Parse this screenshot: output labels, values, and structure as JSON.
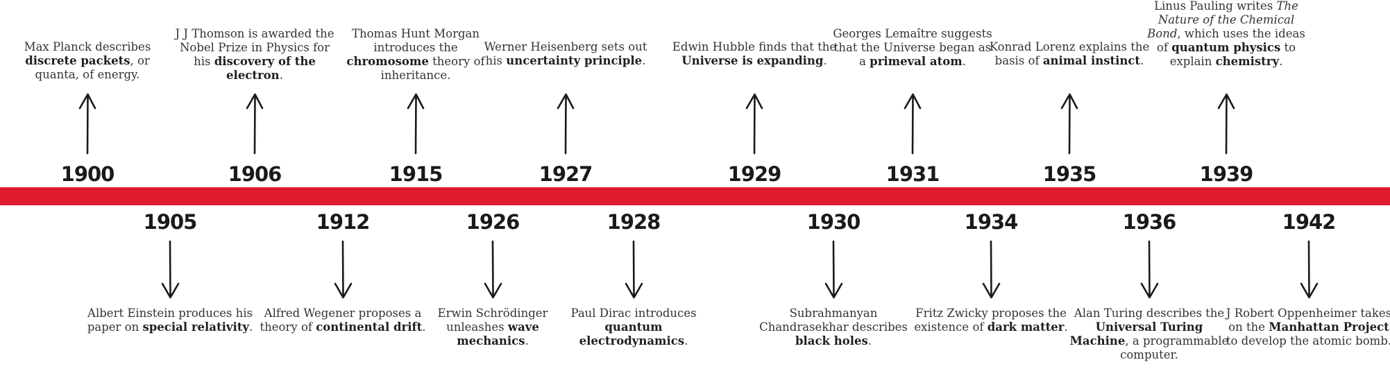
{
  "events_above": [
    {
      "year": "1900",
      "parts": [
        [
          "Max Planck describes ",
          0
        ],
        [
          "discrete packets",
          1
        ],
        [
          ", or quanta, of energy.",
          0
        ]
      ]
    },
    {
      "year": "1906",
      "parts": [
        [
          "J J Thomson is awarded the Nobel Prize in Physics for his ",
          0
        ],
        [
          "discovery of the electron",
          1
        ],
        [
          ".",
          0
        ]
      ]
    },
    {
      "year": "1915",
      "parts": [
        [
          "Thomas Hunt Morgan introduces the ",
          0
        ],
        [
          "chromosome",
          1
        ],
        [
          " theory of inheritance.",
          0
        ]
      ]
    },
    {
      "year": "1927",
      "parts": [
        [
          "Werner Heisenberg sets out his ",
          0
        ],
        [
          "uncertainty principle",
          1
        ],
        [
          ".",
          0
        ]
      ]
    },
    {
      "year": "1929",
      "parts": [
        [
          "Edwin Hubble finds that the ",
          0
        ],
        [
          "Universe is expanding",
          1
        ],
        [
          ".",
          0
        ]
      ]
    },
    {
      "year": "1931",
      "parts": [
        [
          "Georges Lemaître suggests that the Universe began as a ",
          0
        ],
        [
          "primeval atom",
          1
        ],
        [
          ".",
          0
        ]
      ]
    },
    {
      "year": "1935",
      "parts": [
        [
          "Konrad Lorenz explains the basis of ",
          0
        ],
        [
          "animal instinct",
          1
        ],
        [
          ".",
          0
        ]
      ]
    },
    {
      "year": "1939",
      "parts": [
        [
          "Linus Pauling writes ",
          0
        ],
        [
          "The Nature of the Chemical Bond",
          2
        ],
        [
          ", which uses the ideas of ",
          0
        ],
        [
          "quantum physics",
          1
        ],
        [
          " to explain ",
          0
        ],
        [
          "chemistry",
          1
        ],
        [
          ".",
          0
        ]
      ]
    }
  ],
  "events_below": [
    {
      "year": "1905",
      "parts": [
        [
          "Albert Einstein produces his paper on ",
          0
        ],
        [
          "special relativity",
          1
        ],
        [
          ".",
          0
        ]
      ]
    },
    {
      "year": "1912",
      "parts": [
        [
          "Alfred Wegener proposes a theory of ",
          0
        ],
        [
          "continental drift",
          1
        ],
        [
          ".",
          0
        ]
      ]
    },
    {
      "year": "1926",
      "parts": [
        [
          "Erwin Schrödinger unleashes ",
          0
        ],
        [
          "wave mechanics",
          1
        ],
        [
          ".",
          0
        ]
      ]
    },
    {
      "year": "1928",
      "parts": [
        [
          "Paul Dirac introduces ",
          0
        ],
        [
          "quantum electrodynamics",
          1
        ],
        [
          ".",
          0
        ]
      ]
    },
    {
      "year": "1930",
      "parts": [
        [
          "Subrahmanyan Chandrasekhar describes ",
          0
        ],
        [
          "black holes",
          1
        ],
        [
          ".",
          0
        ]
      ]
    },
    {
      "year": "1934",
      "parts": [
        [
          "Fritz Zwicky proposes the existence of ",
          0
        ],
        [
          "dark matter",
          1
        ],
        [
          ".",
          0
        ]
      ]
    },
    {
      "year": "1936",
      "parts": [
        [
          "Alan Turing describes the ",
          0
        ],
        [
          "Universal Turing Machine",
          1
        ],
        [
          ", a programmable computer.",
          0
        ]
      ]
    },
    {
      "year": "1942",
      "parts": [
        [
          "J Robert Oppenheimer takes on the ",
          0
        ],
        [
          "Manhattan Project",
          1
        ],
        [
          " to develop the atomic bomb.",
          0
        ]
      ]
    }
  ],
  "colors": {
    "bar": "#e01b2f",
    "year_text": "#1a1a1a",
    "body_text": "#333333",
    "arrow": "#1a1a1a"
  }
}
